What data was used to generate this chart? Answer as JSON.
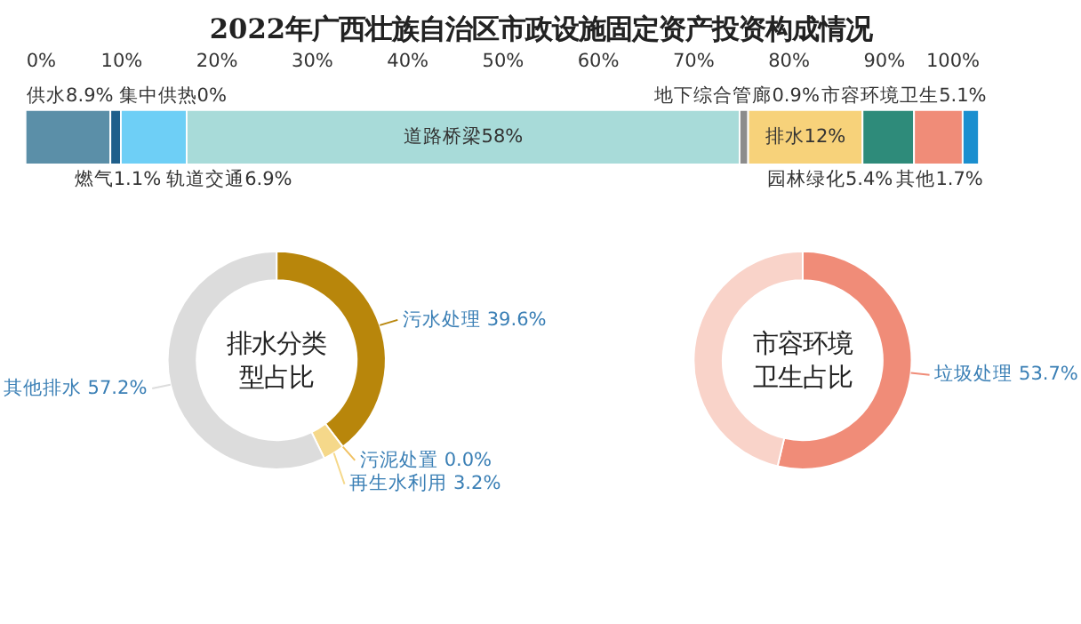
{
  "chart_data": [
    {
      "type": "bar",
      "title": "2022年广西壮族自治区市政设施固定资产投资构成情况",
      "orientation": "horizontal",
      "stacked": true,
      "categories": [
        null
      ],
      "xlim": [
        0,
        100
      ],
      "xticks": [
        {
          "value": 0,
          "label": "0%"
        },
        {
          "value": 10,
          "label": "10%"
        },
        {
          "value": 20,
          "label": "20%"
        },
        {
          "value": 30,
          "label": "30%"
        },
        {
          "value": 40,
          "label": "40%"
        },
        {
          "value": 50,
          "label": "50%"
        },
        {
          "value": 60,
          "label": "60%"
        },
        {
          "value": 70,
          "label": "70%"
        },
        {
          "value": 80,
          "label": "80%"
        },
        {
          "value": 90,
          "label": "90%"
        },
        {
          "value": 100,
          "label": "100%"
        }
      ],
      "grid": false,
      "series": [
        {
          "name": "供水",
          "color": "#5b8fa8",
          "values": [
            8.9
          ],
          "value_labels": [
            "8.9%"
          ]
        },
        {
          "name": "燃气",
          "color": "#1f5f8b",
          "values": [
            1.1
          ],
          "value_labels": [
            "1.1%"
          ]
        },
        {
          "name": "集中供热",
          "color": "#3a7fb5",
          "values": [
            0
          ],
          "value_labels": [
            "0%"
          ]
        },
        {
          "name": "轨道交通",
          "color": "#6ecff6",
          "values": [
            6.9
          ],
          "value_labels": [
            "6.9%"
          ]
        },
        {
          "name": "道路桥梁",
          "color": "#a8dbd9",
          "values": [
            58
          ],
          "value_labels": [
            "58%"
          ]
        },
        {
          "name": "地下综合管廊",
          "color": "#8c8c8c",
          "values": [
            0.9
          ],
          "value_labels": [
            "0.9%"
          ]
        },
        {
          "name": "排水",
          "color": "#f7d27a",
          "values": [
            12
          ],
          "value_labels": [
            "12%"
          ]
        },
        {
          "name": "园林绿化",
          "color": "#2e8b7a",
          "values": [
            5.4
          ],
          "value_labels": [
            "5.4%"
          ]
        },
        {
          "name": "市容环境卫生",
          "color": "#f08c78",
          "values": [
            5.1
          ],
          "value_labels": [
            "5.1%"
          ]
        },
        {
          "name": "其他",
          "color": "#1b8fcf",
          "values": [
            1.7
          ],
          "value_labels": [
            "1.7%"
          ]
        }
      ]
    },
    {
      "type": "donut",
      "title": "排水分类型占比",
      "categories": [
        "污水处理",
        "污泥处置",
        "再生水利用",
        "其他排水"
      ],
      "values": [
        39.6,
        0.0,
        3.2,
        57.2
      ],
      "colors": [
        "#b8860b",
        "#f0c060",
        "#f5d88a",
        "#dcdcdc"
      ],
      "value_labels": [
        "39.6%",
        "0.0%",
        "3.2%",
        "57.2%"
      ]
    },
    {
      "type": "donut",
      "title": "市容环境卫生占比",
      "categories": [
        "垃圾处理",
        null
      ],
      "values": [
        53.7,
        46.3
      ],
      "colors": [
        "#f08c78",
        "#f9d3c9"
      ],
      "value_labels": [
        "53.7%",
        null
      ]
    }
  ]
}
